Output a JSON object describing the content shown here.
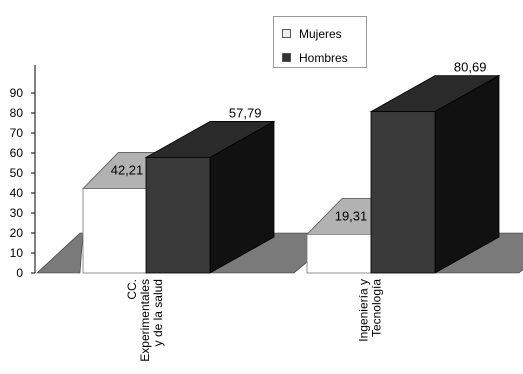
{
  "chart_data": {
    "type": "bar",
    "categories": [
      "CC. Experimentales y de la salud",
      "Ingeniería y Tecnología"
    ],
    "category_label_lines": [
      [
        "CC.",
        "Experimentales",
        "y de la salud"
      ],
      [
        "Ingeniería y",
        "Tecnología"
      ]
    ],
    "series": [
      {
        "name": "Mujeres",
        "values": [
          42.21,
          19.31
        ],
        "value_labels": [
          "42,21",
          "19,31"
        ]
      },
      {
        "name": "Hombres",
        "values": [
          57.79,
          80.69
        ],
        "value_labels": [
          "57,79",
          "80,69"
        ]
      }
    ],
    "ylim": [
      0,
      90
    ],
    "yticks": [
      0,
      10,
      20,
      30,
      40,
      50,
      60,
      70,
      80,
      90
    ],
    "style": "3d-perspective",
    "legend_position": "top-right",
    "colors": {
      "mujeres_front": "#ffffff",
      "mujeres_top": "#b2b2b2",
      "hombres_front": "#3a3a3a",
      "hombres_top": "#2a2a2a",
      "hombres_side": "#111111",
      "floor": "#7a7a7a"
    }
  }
}
